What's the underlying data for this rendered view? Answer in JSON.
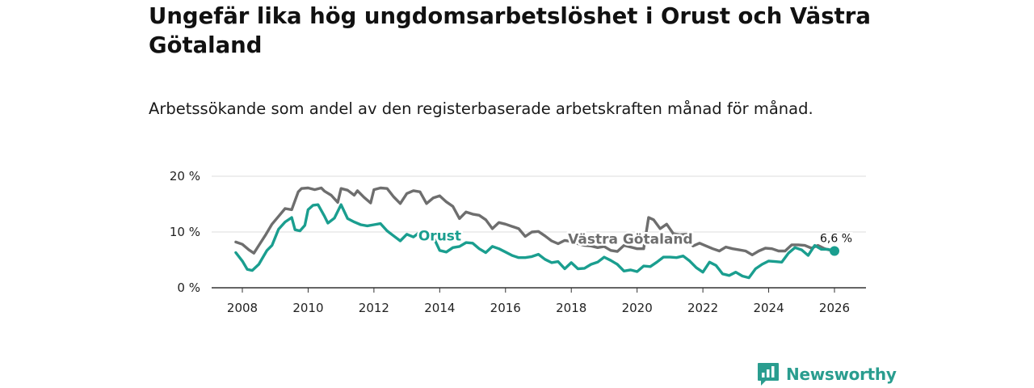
{
  "title": "Ungefär lika hög ungdomsarbetslöshet i Orust och Västra Götaland",
  "subtitle": "Arbetssökande som andel av den registerbaserade arbetskraften månad för månad.",
  "brand": {
    "name": "Newsworthy",
    "icon": "bar-chart-speech-bubble-icon"
  },
  "colors": {
    "orust": "#1a9e8f",
    "vastra_gotaland": "#6e6e6e",
    "grid": "#dddddd",
    "axis": "#333333"
  },
  "chart_data": {
    "type": "line",
    "title": "Ungefär lika hög ungdomsarbetslöshet i Orust och Västra Götaland",
    "subtitle": "Arbetssökande som andel av den registerbaserade arbetskraften månad för månad.",
    "xlabel": "",
    "ylabel": "",
    "xlim": [
      2007.4,
      2027.0
    ],
    "ylim": [
      0,
      20
    ],
    "x_ticks": [
      2008,
      2010,
      2012,
      2014,
      2016,
      2018,
      2020,
      2022,
      2024,
      2026
    ],
    "x_tick_labels": [
      "2008",
      "2010",
      "2012",
      "2014",
      "2016",
      "2018",
      "2020",
      "2022",
      "2024",
      "2026"
    ],
    "y_ticks": [
      0,
      10,
      20
    ],
    "y_tick_labels": [
      "0 %",
      "10 %",
      "20 %"
    ],
    "grid": true,
    "series": [
      {
        "name": "Västra Götaland",
        "label": "Västra Götaland",
        "x": [
          2007.8,
          2008.0,
          2008.2,
          2008.35,
          2008.5,
          2008.7,
          2008.9,
          2009.1,
          2009.3,
          2009.5,
          2009.7,
          2009.8,
          2010.0,
          2010.2,
          2010.4,
          2010.5,
          2010.7,
          2010.9,
          2011.0,
          2011.2,
          2011.4,
          2011.5,
          2011.7,
          2011.9,
          2012.0,
          2012.2,
          2012.4,
          2012.6,
          2012.8,
          2013.0,
          2013.2,
          2013.4,
          2013.6,
          2013.8,
          2014.0,
          2014.2,
          2014.4,
          2014.6,
          2014.8,
          2015.0,
          2015.2,
          2015.4,
          2015.6,
          2015.8,
          2016.0,
          2016.2,
          2016.4,
          2016.6,
          2016.8,
          2017.0,
          2017.2,
          2017.4,
          2017.6,
          2017.8,
          2018.0,
          2018.2,
          2018.4,
          2018.6,
          2018.8,
          2019.0,
          2019.2,
          2019.4,
          2019.6,
          2019.8,
          2020.0,
          2020.2,
          2020.35,
          2020.5,
          2020.7,
          2020.9,
          2021.1,
          2021.3,
          2021.5,
          2021.7,
          2021.9,
          2022.1,
          2022.3,
          2022.5,
          2022.7,
          2022.9,
          2023.1,
          2023.3,
          2023.5,
          2023.7,
          2023.9,
          2024.1,
          2024.3,
          2024.5,
          2024.7,
          2024.9,
          2025.1,
          2025.3,
          2025.5,
          2025.7,
          2025.9,
          2026.0
        ],
        "values": [
          8.2,
          7.8,
          6.8,
          6.2,
          7.6,
          9.4,
          11.4,
          12.8,
          14.2,
          14.0,
          17.2,
          17.8,
          17.9,
          17.6,
          17.9,
          17.3,
          16.6,
          15.3,
          17.8,
          17.5,
          16.6,
          17.4,
          16.2,
          15.2,
          17.6,
          17.9,
          17.8,
          16.3,
          15.1,
          16.9,
          17.4,
          17.2,
          15.1,
          16.1,
          16.5,
          15.4,
          14.6,
          12.4,
          13.6,
          13.2,
          13.0,
          12.2,
          10.6,
          11.7,
          11.4,
          11.0,
          10.6,
          9.2,
          10.0,
          10.1,
          9.3,
          8.4,
          7.9,
          8.5,
          8.3,
          7.9,
          7.6,
          7.5,
          7.2,
          7.4,
          6.7,
          6.5,
          7.6,
          7.3,
          7.0,
          7.0,
          12.6,
          12.2,
          10.6,
          11.4,
          9.7,
          9.5,
          9.6,
          7.5,
          8.0,
          7.5,
          7.0,
          6.6,
          7.3,
          7.0,
          6.8,
          6.6,
          5.9,
          6.6,
          7.1,
          7.0,
          6.6,
          6.6,
          7.7,
          7.7,
          7.6,
          7.1,
          7.6,
          7.0,
          6.7,
          6.6
        ]
      },
      {
        "name": "Orust",
        "label": "Orust",
        "x": [
          2007.8,
          2008.0,
          2008.15,
          2008.3,
          2008.5,
          2008.6,
          2008.75,
          2008.9,
          2009.1,
          2009.3,
          2009.5,
          2009.6,
          2009.75,
          2009.9,
          2010.0,
          2010.15,
          2010.3,
          2010.5,
          2010.6,
          2010.8,
          2011.0,
          2011.2,
          2011.4,
          2011.6,
          2011.8,
          2012.0,
          2012.2,
          2012.4,
          2012.6,
          2012.8,
          2013.0,
          2013.2,
          2013.4,
          2013.6,
          2013.8,
          2014.0,
          2014.2,
          2014.4,
          2014.6,
          2014.8,
          2015.0,
          2015.2,
          2015.4,
          2015.6,
          2015.8,
          2016.0,
          2016.2,
          2016.4,
          2016.6,
          2016.8,
          2017.0,
          2017.2,
          2017.4,
          2017.6,
          2017.8,
          2018.0,
          2018.2,
          2018.4,
          2018.6,
          2018.8,
          2019.0,
          2019.2,
          2019.4,
          2019.6,
          2019.8,
          2020.0,
          2020.2,
          2020.4,
          2020.6,
          2020.8,
          2021.0,
          2021.2,
          2021.4,
          2021.6,
          2021.8,
          2022.0,
          2022.2,
          2022.4,
          2022.6,
          2022.8,
          2023.0,
          2023.2,
          2023.4,
          2023.6,
          2023.8,
          2024.0,
          2024.2,
          2024.4,
          2024.6,
          2024.8,
          2025.0,
          2025.2,
          2025.4,
          2025.6,
          2025.8,
          2026.0
        ],
        "values": [
          6.3,
          4.8,
          3.3,
          3.1,
          4.2,
          5.2,
          6.7,
          7.6,
          10.5,
          11.8,
          12.6,
          10.4,
          10.2,
          11.2,
          14.0,
          14.8,
          14.9,
          12.8,
          11.6,
          12.5,
          14.9,
          12.4,
          11.8,
          11.3,
          11.1,
          11.3,
          11.5,
          10.2,
          9.3,
          8.4,
          9.6,
          9.1,
          10.0,
          9.9,
          9.2,
          6.7,
          6.4,
          7.2,
          7.4,
          8.1,
          8.0,
          7.0,
          6.3,
          7.4,
          7.0,
          6.4,
          5.8,
          5.4,
          5.4,
          5.6,
          6.0,
          5.1,
          4.5,
          4.7,
          3.4,
          4.5,
          3.4,
          3.5,
          4.2,
          4.6,
          5.5,
          4.9,
          4.2,
          3.0,
          3.2,
          2.9,
          3.9,
          3.8,
          4.6,
          5.5,
          5.5,
          5.4,
          5.7,
          4.8,
          3.6,
          2.8,
          4.6,
          4.0,
          2.5,
          2.2,
          2.8,
          2.1,
          1.8,
          3.4,
          4.2,
          4.8,
          4.7,
          4.6,
          6.2,
          7.2,
          6.8,
          5.8,
          7.6,
          6.9,
          6.9,
          6.6
        ]
      }
    ],
    "annotations": [
      {
        "series": "Orust",
        "text": "6,6 %",
        "x": 2026.0,
        "y": 6.6
      }
    ]
  }
}
